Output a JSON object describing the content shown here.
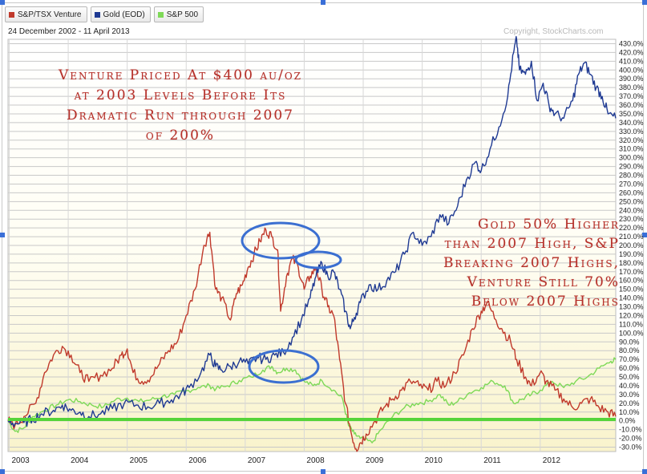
{
  "legend": [
    {
      "label": "S&P/TSX Venture",
      "color": "#c0392b"
    },
    {
      "label": "Gold (EOD)",
      "color": "#1f3a93"
    },
    {
      "label": "S&P 500",
      "color": "#7ed957"
    }
  ],
  "date_range": "24 December 2002 - 11 April 2013",
  "copyright": "Copyright, StockCharts.com",
  "annotations": {
    "venture": [
      "Venture Priced At $400 au/oz",
      "at 2003 Levels Before Its",
      "Dramatic Run through 2007",
      "of 200%"
    ],
    "gold": [
      "Gold 50% Higher",
      "than 2007 High, S&P",
      "Breaking 2007 Highs,",
      "Venture Still 70%",
      "Below 2007 Highs"
    ]
  },
  "colors": {
    "venture": "#c0392b",
    "gold": "#1f3a93",
    "sp500": "#7ed957",
    "baseline": "#55d43a",
    "ellipse": "#3b6fd1",
    "plot_bg_bottom": "#fbf7d8"
  },
  "chart_data": {
    "type": "line",
    "x_ticks": [
      "2003",
      "2004",
      "2005",
      "2006",
      "2007",
      "2008",
      "2009",
      "2010",
      "2011",
      "2012"
    ],
    "y_ticks": [
      "430.0%",
      "420.0%",
      "410.0%",
      "400.0%",
      "390.0%",
      "380.0%",
      "370.0%",
      "360.0%",
      "350.0%",
      "340.0%",
      "330.0%",
      "320.0%",
      "310.0%",
      "300.0%",
      "290.0%",
      "280.0%",
      "270.0%",
      "260.0%",
      "250.0%",
      "240.0%",
      "230.0%",
      "220.0%",
      "210.0%",
      "200.0%",
      "190.0%",
      "180.0%",
      "170.0%",
      "160.0%",
      "150.0%",
      "140.0%",
      "130.0%",
      "120.0%",
      "110.0%",
      "100.0%",
      "90.0%",
      "80.0%",
      "70.0%",
      "60.0%",
      "50.0%",
      "40.0%",
      "30.0%",
      "20.0%",
      "10.0%",
      "0.0%",
      "-10.0%",
      "-20.0%",
      "-30.0%"
    ],
    "ylim": [
      -35,
      435
    ],
    "xlim": [
      2002.98,
      2013.28
    ],
    "series": [
      {
        "name": "S&P/TSX Venture",
        "points": [
          [
            2002.98,
            0
          ],
          [
            2003.1,
            -5
          ],
          [
            2003.25,
            5
          ],
          [
            2003.45,
            20
          ],
          [
            2003.6,
            55
          ],
          [
            2003.75,
            75
          ],
          [
            2003.9,
            85
          ],
          [
            2004.05,
            75
          ],
          [
            2004.2,
            55
          ],
          [
            2004.35,
            45
          ],
          [
            2004.55,
            52
          ],
          [
            2004.75,
            60
          ],
          [
            2004.9,
            75
          ],
          [
            2005.0,
            82
          ],
          [
            2005.1,
            55
          ],
          [
            2005.25,
            45
          ],
          [
            2005.4,
            50
          ],
          [
            2005.55,
            65
          ],
          [
            2005.7,
            80
          ],
          [
            2005.85,
            90
          ],
          [
            2006.0,
            120
          ],
          [
            2006.15,
            150
          ],
          [
            2006.3,
            200
          ],
          [
            2006.4,
            215
          ],
          [
            2006.5,
            150
          ],
          [
            2006.6,
            140
          ],
          [
            2006.75,
            115
          ],
          [
            2006.85,
            145
          ],
          [
            2006.95,
            155
          ],
          [
            2007.05,
            175
          ],
          [
            2007.15,
            190
          ],
          [
            2007.25,
            205
          ],
          [
            2007.35,
            218
          ],
          [
            2007.45,
            210
          ],
          [
            2007.55,
            195
          ],
          [
            2007.6,
            125
          ],
          [
            2007.7,
            165
          ],
          [
            2007.8,
            185
          ],
          [
            2007.9,
            175
          ],
          [
            2008.0,
            150
          ],
          [
            2008.1,
            165
          ],
          [
            2008.2,
            175
          ],
          [
            2008.3,
            150
          ],
          [
            2008.4,
            130
          ],
          [
            2008.5,
            120
          ],
          [
            2008.6,
            70
          ],
          [
            2008.7,
            20
          ],
          [
            2008.8,
            -15
          ],
          [
            2008.88,
            -32
          ],
          [
            2008.95,
            -25
          ],
          [
            2009.05,
            -15
          ],
          [
            2009.2,
            0
          ],
          [
            2009.35,
            15
          ],
          [
            2009.5,
            25
          ],
          [
            2009.65,
            35
          ],
          [
            2009.8,
            45
          ],
          [
            2009.95,
            40
          ],
          [
            2010.1,
            35
          ],
          [
            2010.25,
            45
          ],
          [
            2010.4,
            40
          ],
          [
            2010.55,
            55
          ],
          [
            2010.7,
            75
          ],
          [
            2010.85,
            105
          ],
          [
            2011.0,
            125
          ],
          [
            2011.1,
            135
          ],
          [
            2011.25,
            115
          ],
          [
            2011.35,
            105
          ],
          [
            2011.5,
            90
          ],
          [
            2011.6,
            70
          ],
          [
            2011.75,
            50
          ],
          [
            2011.85,
            40
          ],
          [
            2012.0,
            55
          ],
          [
            2012.1,
            45
          ],
          [
            2012.25,
            35
          ],
          [
            2012.4,
            25
          ],
          [
            2012.55,
            15
          ],
          [
            2012.7,
            20
          ],
          [
            2012.85,
            25
          ],
          [
            2013.0,
            15
          ],
          [
            2013.15,
            10
          ],
          [
            2013.28,
            5
          ]
        ]
      },
      {
        "name": "Gold (EOD)",
        "points": [
          [
            2002.98,
            0
          ],
          [
            2003.1,
            -3
          ],
          [
            2003.25,
            -2
          ],
          [
            2003.4,
            2
          ],
          [
            2003.55,
            8
          ],
          [
            2003.75,
            12
          ],
          [
            2003.9,
            18
          ],
          [
            2004.05,
            12
          ],
          [
            2004.2,
            10
          ],
          [
            2004.35,
            5
          ],
          [
            2004.55,
            8
          ],
          [
            2004.75,
            14
          ],
          [
            2004.95,
            20
          ],
          [
            2005.15,
            18
          ],
          [
            2005.35,
            16
          ],
          [
            2005.55,
            20
          ],
          [
            2005.75,
            24
          ],
          [
            2005.9,
            30
          ],
          [
            2006.05,
            38
          ],
          [
            2006.25,
            55
          ],
          [
            2006.4,
            75
          ],
          [
            2006.5,
            62
          ],
          [
            2006.6,
            58
          ],
          [
            2006.75,
            62
          ],
          [
            2006.9,
            68
          ],
          [
            2007.05,
            65
          ],
          [
            2007.2,
            72
          ],
          [
            2007.35,
            70
          ],
          [
            2007.5,
            75
          ],
          [
            2007.65,
            78
          ],
          [
            2007.8,
            95
          ],
          [
            2007.95,
            115
          ],
          [
            2008.1,
            140
          ],
          [
            2008.2,
            165
          ],
          [
            2008.3,
            180
          ],
          [
            2008.4,
            165
          ],
          [
            2008.5,
            170
          ],
          [
            2008.6,
            150
          ],
          [
            2008.7,
            125
          ],
          [
            2008.78,
            105
          ],
          [
            2008.85,
            118
          ],
          [
            2008.95,
            135
          ],
          [
            2009.1,
            155
          ],
          [
            2009.25,
            150
          ],
          [
            2009.4,
            160
          ],
          [
            2009.55,
            170
          ],
          [
            2009.7,
            190
          ],
          [
            2009.85,
            215
          ],
          [
            2010.0,
            200
          ],
          [
            2010.15,
            210
          ],
          [
            2010.3,
            235
          ],
          [
            2010.45,
            225
          ],
          [
            2010.6,
            245
          ],
          [
            2010.75,
            275
          ],
          [
            2010.9,
            295
          ],
          [
            2011.0,
            285
          ],
          [
            2011.15,
            310
          ],
          [
            2011.3,
            335
          ],
          [
            2011.45,
            370
          ],
          [
            2011.55,
            420
          ],
          [
            2011.6,
            435
          ],
          [
            2011.65,
            400
          ],
          [
            2011.75,
            395
          ],
          [
            2011.85,
            410
          ],
          [
            2011.95,
            365
          ],
          [
            2012.05,
            385
          ],
          [
            2012.15,
            360
          ],
          [
            2012.25,
            350
          ],
          [
            2012.4,
            345
          ],
          [
            2012.55,
            365
          ],
          [
            2012.65,
            395
          ],
          [
            2012.75,
            408
          ],
          [
            2012.85,
            395
          ],
          [
            2012.95,
            380
          ],
          [
            2013.05,
            370
          ],
          [
            2013.15,
            350
          ],
          [
            2013.28,
            345
          ]
        ]
      },
      {
        "name": "S&P 500",
        "points": [
          [
            2002.98,
            0
          ],
          [
            2003.1,
            -12
          ],
          [
            2003.25,
            -8
          ],
          [
            2003.4,
            5
          ],
          [
            2003.6,
            12
          ],
          [
            2003.8,
            18
          ],
          [
            2004.0,
            24
          ],
          [
            2004.2,
            22
          ],
          [
            2004.4,
            18
          ],
          [
            2004.6,
            16
          ],
          [
            2004.8,
            24
          ],
          [
            2005.0,
            26
          ],
          [
            2005.2,
            22
          ],
          [
            2005.4,
            24
          ],
          [
            2005.6,
            28
          ],
          [
            2005.8,
            30
          ],
          [
            2006.0,
            34
          ],
          [
            2006.2,
            38
          ],
          [
            2006.4,
            40
          ],
          [
            2006.5,
            36
          ],
          [
            2006.7,
            40
          ],
          [
            2006.9,
            46
          ],
          [
            2007.1,
            50
          ],
          [
            2007.3,
            58
          ],
          [
            2007.45,
            62
          ],
          [
            2007.55,
            55
          ],
          [
            2007.7,
            60
          ],
          [
            2007.85,
            58
          ],
          [
            2008.0,
            45
          ],
          [
            2008.15,
            40
          ],
          [
            2008.3,
            46
          ],
          [
            2008.5,
            35
          ],
          [
            2008.65,
            25
          ],
          [
            2008.75,
            -5
          ],
          [
            2008.85,
            -15
          ],
          [
            2008.95,
            -20
          ],
          [
            2009.15,
            -25
          ],
          [
            2009.3,
            -10
          ],
          [
            2009.5,
            5
          ],
          [
            2009.7,
            15
          ],
          [
            2009.9,
            20
          ],
          [
            2010.1,
            22
          ],
          [
            2010.3,
            30
          ],
          [
            2010.45,
            18
          ],
          [
            2010.6,
            22
          ],
          [
            2010.8,
            32
          ],
          [
            2011.0,
            38
          ],
          [
            2011.2,
            45
          ],
          [
            2011.4,
            40
          ],
          [
            2011.55,
            20
          ],
          [
            2011.7,
            25
          ],
          [
            2011.85,
            30
          ],
          [
            2012.0,
            35
          ],
          [
            2012.2,
            45
          ],
          [
            2012.4,
            38
          ],
          [
            2012.6,
            45
          ],
          [
            2012.8,
            50
          ],
          [
            2013.0,
            60
          ],
          [
            2013.2,
            68
          ],
          [
            2013.28,
            70
          ]
        ]
      }
    ]
  }
}
